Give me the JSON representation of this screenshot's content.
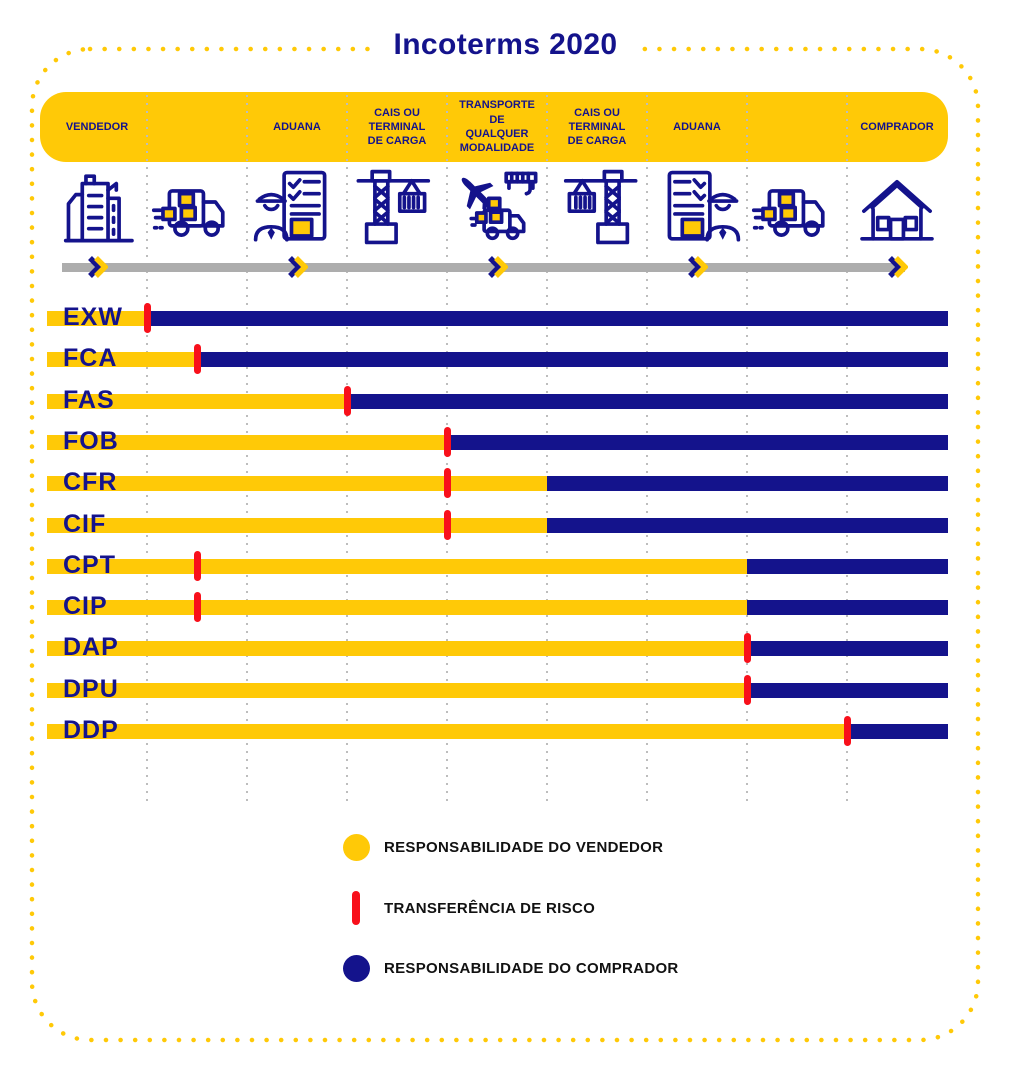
{
  "title": "Incoterms 2020",
  "colors": {
    "seller_yellow": "#FFC907",
    "buyer_navy": "#14138C",
    "risk_red": "#F8101B",
    "timeline_gray": "#ADADAD",
    "legend_text": "#111111"
  },
  "stages": [
    {
      "label": "VENDEDOR",
      "column": 0
    },
    {
      "label": "ADUANA",
      "column": 2
    },
    {
      "label": "CAIS OU TERMINAL DE CARGA",
      "column": 3
    },
    {
      "label": "TRANSPORTE DE QUALQUER MODALIDADE",
      "column": 4
    },
    {
      "label": "CAIS OU TERMINAL DE CARGA",
      "column": 5
    },
    {
      "label": "ADUANA",
      "column": 6
    },
    {
      "label": "COMPRADOR",
      "column": 8
    }
  ],
  "icons": [
    {
      "name": "office-building-icon",
      "column": 0,
      "glyph": "building"
    },
    {
      "name": "delivery-truck-icon",
      "column": 1,
      "glyph": "truck"
    },
    {
      "name": "customs-officer-icon",
      "column": 2,
      "glyph": "customs"
    },
    {
      "name": "port-crane-icon",
      "column": 3,
      "glyph": "crane"
    },
    {
      "name": "multimodal-transport-icon",
      "column": 4,
      "glyph": "multimodal"
    },
    {
      "name": "port-crane-mirrored-icon",
      "column": 5,
      "glyph": "crane-mirrored"
    },
    {
      "name": "customs-officer-mirrored-icon",
      "column": 6,
      "glyph": "customs-mirrored"
    },
    {
      "name": "delivery-truck-icon",
      "column": 7,
      "glyph": "truck"
    },
    {
      "name": "house-icon",
      "column": 8,
      "glyph": "house"
    }
  ],
  "timeline": {
    "chevron_columns": [
      0,
      2,
      4,
      6,
      8
    ]
  },
  "incoterms": [
    {
      "code": "EXW",
      "risk_transfer": 100,
      "seller_cost_until": 100
    },
    {
      "code": "FCA",
      "risk_transfer": 150,
      "seller_cost_until": 150
    },
    {
      "code": "FAS",
      "risk_transfer": 300,
      "seller_cost_until": 300
    },
    {
      "code": "FOB",
      "risk_transfer": 400,
      "seller_cost_until": 400
    },
    {
      "code": "CFR",
      "risk_transfer": 400,
      "seller_cost_until": 500
    },
    {
      "code": "CIF",
      "risk_transfer": 400,
      "seller_cost_until": 500
    },
    {
      "code": "CPT",
      "risk_transfer": 150,
      "seller_cost_until": 700
    },
    {
      "code": "CIP",
      "risk_transfer": 150,
      "seller_cost_until": 700
    },
    {
      "code": "DAP",
      "risk_transfer": 700,
      "seller_cost_until": 700
    },
    {
      "code": "DPU",
      "risk_transfer": 700,
      "seller_cost_until": 700
    },
    {
      "code": "DDP",
      "risk_transfer": 800,
      "seller_cost_until": 800
    }
  ],
  "legend": [
    {
      "swatch": "seller-circle",
      "label": "RESPONSABILIDADE DO VENDEDOR"
    },
    {
      "swatch": "risk-tick",
      "label": "TRANSFERÊNCIA DE RISCO"
    },
    {
      "swatch": "buyer-circle",
      "label": "RESPONSABILIDADE DO COMPRADOR"
    }
  ]
}
